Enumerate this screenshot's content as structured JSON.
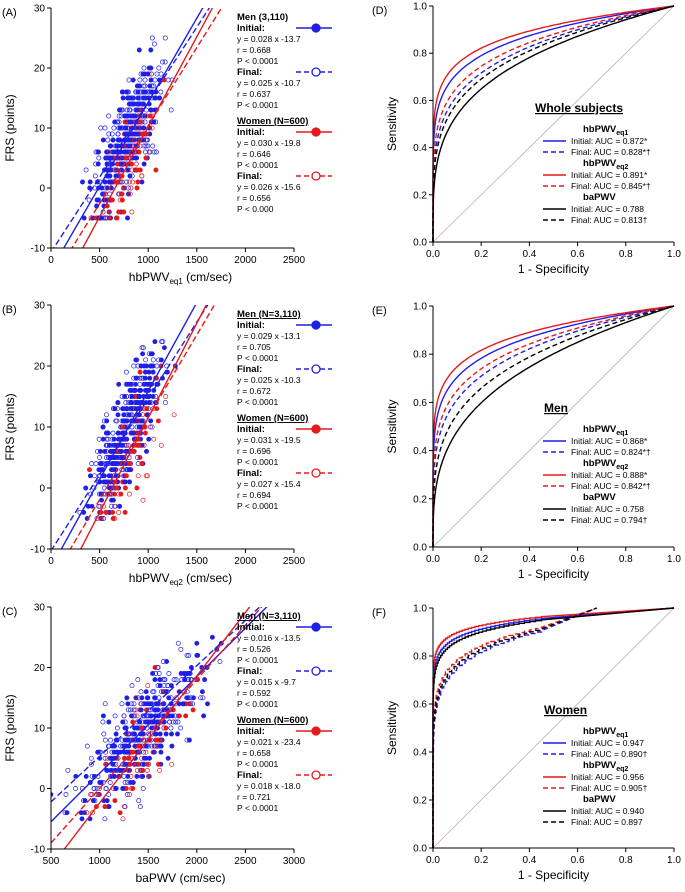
{
  "colors": {
    "men": "#1f1fe6",
    "women": "#e41a1c",
    "bapwv": "#000000",
    "diag": "#b3b3b3"
  },
  "chart_data": [
    {
      "type": "scatter",
      "panel_label": "(A)",
      "xlabel_main": "hbPWV",
      "xlabel_sub": "eq1",
      "xlabel_unit": "(cm/sec)",
      "ylabel": "FRS (points)",
      "xlim": [
        0,
        2500
      ],
      "ylim": [
        -10,
        30
      ],
      "xticks": [
        0,
        500,
        1000,
        1500,
        2000,
        2500
      ],
      "yticks": [
        -10,
        0,
        10,
        20,
        30
      ],
      "scatter_x_center": 800,
      "scatter_x_spread": 180,
      "legend": [
        {
          "header": "Men (3,110)",
          "underline": false,
          "color": "men",
          "filled": true,
          "dashed": false,
          "step": "Initial:",
          "lines": [
            "y = 0.028 x -13.7",
            "r = 0.668",
            "P < 0.0001"
          ]
        },
        {
          "color": "men",
          "filled": false,
          "dashed": true,
          "step": "Final:",
          "lines": [
            "y = 0.025 x -10.7",
            "r = 0.637",
            "P < 0.0001"
          ]
        },
        {
          "header": "Women (N=600)",
          "underline": true,
          "color": "women",
          "filled": true,
          "dashed": false,
          "step": "Initial:",
          "lines": [
            "y = 0.030 x -19.8",
            "r = 0.646",
            "P < 0.0001"
          ]
        },
        {
          "color": "women",
          "filled": false,
          "dashed": true,
          "step": "Final:",
          "lines": [
            "y = 0.026 x -15.6",
            "r = 0.656",
            "P < 0.000"
          ]
        }
      ],
      "fits": [
        {
          "color": "men",
          "dashed": false,
          "slope": 0.028,
          "intercept": -13.7
        },
        {
          "color": "men",
          "dashed": true,
          "slope": 0.025,
          "intercept": -10.7
        },
        {
          "color": "women",
          "dashed": false,
          "slope": 0.03,
          "intercept": -19.8
        },
        {
          "color": "women",
          "dashed": true,
          "slope": 0.026,
          "intercept": -15.6
        }
      ]
    },
    {
      "type": "scatter",
      "panel_label": "(B)",
      "xlabel_main": "hbPWV",
      "xlabel_sub": "eq2",
      "xlabel_unit": "(cm/sec)",
      "ylabel": "FRS (points)",
      "xlim": [
        0,
        2500
      ],
      "ylim": [
        -10,
        30
      ],
      "xticks": [
        0,
        500,
        1000,
        1500,
        2000,
        2500
      ],
      "yticks": [
        -10,
        0,
        10,
        20,
        30
      ],
      "scatter_x_center": 800,
      "scatter_x_spread": 190,
      "legend": [
        {
          "header": "Men (N=3,110)",
          "underline": true,
          "color": "men",
          "filled": true,
          "dashed": false,
          "step": "Initial:",
          "lines": [
            "y = 0.029 x -13.1",
            "r = 0.705",
            "P < 0.0001"
          ]
        },
        {
          "color": "men",
          "filled": false,
          "dashed": true,
          "step": "Final:",
          "lines": [
            "y = 0.025 x -10.3",
            "r = 0.672",
            "P < 0.0001"
          ]
        },
        {
          "header": "Women (N=600)",
          "underline": true,
          "color": "women",
          "filled": true,
          "dashed": false,
          "step": "Initial:",
          "lines": [
            "y = 0.031 x -19.5",
            "r = 0.696",
            "P < 0.0001"
          ]
        },
        {
          "color": "women",
          "filled": false,
          "dashed": true,
          "step": "Final:",
          "lines": [
            "y = 0.027 x -15.4",
            "r = 0.694",
            "P < 0.0001"
          ]
        }
      ],
      "fits": [
        {
          "color": "men",
          "dashed": false,
          "slope": 0.029,
          "intercept": -13.1
        },
        {
          "color": "men",
          "dashed": true,
          "slope": 0.025,
          "intercept": -10.3
        },
        {
          "color": "women",
          "dashed": false,
          "slope": 0.031,
          "intercept": -19.5
        },
        {
          "color": "women",
          "dashed": true,
          "slope": 0.027,
          "intercept": -15.4
        }
      ]
    },
    {
      "type": "scatter",
      "panel_label": "(C)",
      "xlabel_main": "baPWV",
      "xlabel_sub": "",
      "xlabel_unit": "(cm/sec)",
      "ylabel": "FRS (points)",
      "xlim": [
        500,
        3000
      ],
      "ylim": [
        -10,
        30
      ],
      "xticks": [
        500,
        1000,
        1500,
        2000,
        2500,
        3000
      ],
      "yticks": [
        -10,
        0,
        10,
        20,
        30
      ],
      "scatter_x_center": 1450,
      "scatter_x_spread": 300,
      "legend": [
        {
          "header": "Men (N=3,110)",
          "underline": true,
          "color": "men",
          "filled": true,
          "dashed": false,
          "step": "Initial:",
          "lines": [
            "y = 0.016 x -13.5",
            "r = 0.526",
            "P < 0.0001"
          ]
        },
        {
          "color": "men",
          "filled": false,
          "dashed": true,
          "step": "Final:",
          "lines": [
            "y = 0.015 x -9.7",
            "r = 0.592",
            "P < 0.0001"
          ]
        },
        {
          "header": "Women (N=600)",
          "underline": true,
          "color": "women",
          "filled": true,
          "dashed": false,
          "step": "Initial:",
          "lines": [
            "y = 0.021 x -23.4",
            "r = 0.658",
            "P < 0.0001"
          ]
        },
        {
          "color": "women",
          "filled": false,
          "dashed": true,
          "step": "Final:",
          "lines": [
            "y = 0.018 x -18.0",
            "r = 0.721",
            "P < 0.0001"
          ]
        }
      ],
      "fits": [
        {
          "color": "men",
          "dashed": false,
          "slope": 0.016,
          "intercept": -13.5
        },
        {
          "color": "men",
          "dashed": true,
          "slope": 0.015,
          "intercept": -9.7
        },
        {
          "color": "women",
          "dashed": false,
          "slope": 0.021,
          "intercept": -23.4
        },
        {
          "color": "women",
          "dashed": true,
          "slope": 0.018,
          "intercept": -18.0
        }
      ]
    },
    {
      "type": "line",
      "panel_label": "(D)",
      "title": "Whole subjects",
      "xlabel": "1 - Specificity",
      "ylabel": "Sensitivity",
      "xlim": [
        0,
        1
      ],
      "ylim": [
        0,
        1
      ],
      "xticks": [
        "0.0",
        "0.2",
        "0.4",
        "0.6",
        "0.8",
        "1.0"
      ],
      "yticks": [
        "0.0",
        "0.2",
        "0.4",
        "0.6",
        "0.8",
        "1.0"
      ],
      "legend": [
        {
          "group": "hbPWV",
          "sub": "eq1"
        },
        {
          "color": "men",
          "dashed": false,
          "label": "Initial: AUC = 0.872*"
        },
        {
          "color": "men",
          "dashed": true,
          "label": "Final: AUC = 0.828*†"
        },
        {
          "group": "hbPWV",
          "sub": "eq2"
        },
        {
          "color": "women",
          "dashed": false,
          "label": "Initial: AUC = 0.891*"
        },
        {
          "color": "women",
          "dashed": true,
          "label": "Final: AUC = 0.845*†"
        },
        {
          "group": "baPWV",
          "sub": ""
        },
        {
          "color": "bapwv",
          "dashed": false,
          "label": "Initial: AUC = 0.788"
        },
        {
          "color": "bapwv",
          "dashed": true,
          "label": "Final: AUC = 0.813†"
        }
      ],
      "series": [
        {
          "name": "hbPWVeq1 Initial",
          "color": "men",
          "dashed": false,
          "auc": 0.872
        },
        {
          "name": "hbPWVeq1 Final",
          "color": "men",
          "dashed": true,
          "auc": 0.828
        },
        {
          "name": "hbPWVeq2 Initial",
          "color": "women",
          "dashed": false,
          "auc": 0.891
        },
        {
          "name": "hbPWVeq2 Final",
          "color": "women",
          "dashed": true,
          "auc": 0.845
        },
        {
          "name": "baPWV Initial",
          "color": "bapwv",
          "dashed": false,
          "auc": 0.788
        },
        {
          "name": "baPWV Final",
          "color": "bapwv",
          "dashed": true,
          "auc": 0.813
        }
      ]
    },
    {
      "type": "line",
      "panel_label": "(E)",
      "title": "Men",
      "xlabel": "1 - Specificity",
      "ylabel": "Sensitivity",
      "xlim": [
        0,
        1
      ],
      "ylim": [
        0,
        1
      ],
      "xticks": [
        "0.0",
        "0.2",
        "0.4",
        "0.6",
        "0.8",
        "1.0"
      ],
      "yticks": [
        "0.0",
        "0.2",
        "0.4",
        "0.6",
        "0.8",
        "1.0"
      ],
      "legend": [
        {
          "group": "hbPWV",
          "sub": "eq1"
        },
        {
          "color": "men",
          "dashed": false,
          "label": "Initial: AUC = 0.868*"
        },
        {
          "color": "men",
          "dashed": true,
          "label": "Final: AUC = 0.824*†"
        },
        {
          "group": "hbPWV",
          "sub": "eq2"
        },
        {
          "color": "women",
          "dashed": false,
          "label": "Initial: AUC = 0.888*"
        },
        {
          "color": "women",
          "dashed": true,
          "label": "Final: AUC = 0.842*†"
        },
        {
          "group": "baPWV",
          "sub": ""
        },
        {
          "color": "bapwv",
          "dashed": false,
          "label": "Initial: AUC = 0.758"
        },
        {
          "color": "bapwv",
          "dashed": true,
          "label": "Final: AUC = 0.794†"
        }
      ],
      "series": [
        {
          "name": "hbPWVeq1 Initial",
          "color": "men",
          "dashed": false,
          "auc": 0.868
        },
        {
          "name": "hbPWVeq1 Final",
          "color": "men",
          "dashed": true,
          "auc": 0.824
        },
        {
          "name": "hbPWVeq2 Initial",
          "color": "women",
          "dashed": false,
          "auc": 0.888
        },
        {
          "name": "hbPWVeq2 Final",
          "color": "women",
          "dashed": true,
          "auc": 0.842
        },
        {
          "name": "baPWV Initial",
          "color": "bapwv",
          "dashed": false,
          "auc": 0.758
        },
        {
          "name": "baPWV Final",
          "color": "bapwv",
          "dashed": true,
          "auc": 0.794
        }
      ]
    },
    {
      "type": "line",
      "panel_label": "(F)",
      "title": "Women",
      "xlabel": "1 - Specificity",
      "ylabel": "Sensitivity",
      "xlim": [
        0,
        1
      ],
      "ylim": [
        0,
        1
      ],
      "xticks": [
        "0.0",
        "0.2",
        "0.4",
        "0.6",
        "0.8",
        "1.0"
      ],
      "yticks": [
        "0.0",
        "0.2",
        "0.4",
        "0.6",
        "0.8",
        "1.0"
      ],
      "legend": [
        {
          "group": "hbPWV",
          "sub": "eq1"
        },
        {
          "color": "men",
          "dashed": false,
          "label": "Initial: AUC = 0.947"
        },
        {
          "color": "men",
          "dashed": true,
          "label": "Final: AUC = 0.890†"
        },
        {
          "group": "hbPWV",
          "sub": "eq2"
        },
        {
          "color": "women",
          "dashed": false,
          "label": "Initial: AUC = 0.956"
        },
        {
          "color": "women",
          "dashed": true,
          "label": "Final: AUC = 0.905†"
        },
        {
          "group": "baPWV",
          "sub": ""
        },
        {
          "color": "bapwv",
          "dashed": false,
          "label": "Initial: AUC = 0.940"
        },
        {
          "color": "bapwv",
          "dashed": true,
          "label": "Final: AUC = 0.897"
        }
      ],
      "series": [
        {
          "name": "hbPWVeq1 Initial",
          "color": "men",
          "dashed": false,
          "auc": 0.947,
          "step": true
        },
        {
          "name": "hbPWVeq1 Final",
          "color": "men",
          "dashed": true,
          "auc": 0.89,
          "step": true
        },
        {
          "name": "hbPWVeq2 Initial",
          "color": "women",
          "dashed": false,
          "auc": 0.956,
          "step": true
        },
        {
          "name": "hbPWVeq2 Final",
          "color": "women",
          "dashed": true,
          "auc": 0.905,
          "step": true
        },
        {
          "name": "baPWV Initial",
          "color": "bapwv",
          "dashed": false,
          "auc": 0.94,
          "step": true
        },
        {
          "name": "baPWV Final",
          "color": "bapwv",
          "dashed": true,
          "auc": 0.897,
          "step": true
        }
      ]
    }
  ]
}
